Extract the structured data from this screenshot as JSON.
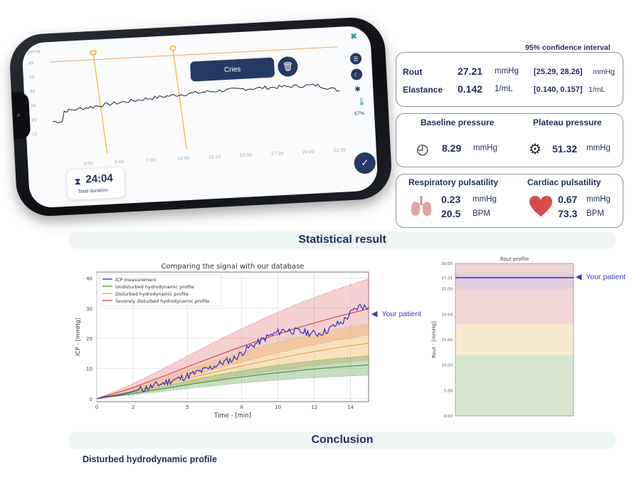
{
  "phone": {
    "trace_unit": "mmHg",
    "y_ticks": [
      "60",
      "50",
      "40",
      "30",
      "20",
      "10"
    ],
    "x_ticks": [
      "3:00",
      "5:00",
      "7:00",
      "10:00",
      "11:20",
      "15:00",
      "17:20",
      "20:00",
      "22:20"
    ],
    "cries_label": "Cries",
    "trash_icon": "trash-icon",
    "duration_value": "24:04",
    "duration_label": "Total duration",
    "battery": "67%",
    "trace_color": "#1c2230",
    "marker_color": "#f0b429",
    "threshold_color": "#f0a060"
  },
  "metrics": {
    "ci_header": "95% confidence interval",
    "rout": {
      "label": "Rout",
      "value": "27.21",
      "unit": "mmHg",
      "ci": "[25.29, 28.26]",
      "ci_unit": "mmHg"
    },
    "elastance": {
      "label": "Elastance",
      "value": "0.142",
      "unit": "1/mL",
      "ci": "[0.140, 0.157]",
      "ci_unit": "1/mL"
    },
    "baseline": {
      "label": "Baseline pressure",
      "value": "8.29",
      "unit": "mmHg"
    },
    "plateau": {
      "label": "Plateau pressure",
      "value": "51.32",
      "unit": "mmHg"
    },
    "respiratory": {
      "label": "Respiratory pulsatility",
      "value1": "0.23",
      "unit1": "mmHg",
      "value2": "20.5",
      "unit2": "BPM"
    },
    "cardiac": {
      "label": "Cardiac pulsatility",
      "value1": "0.67",
      "unit1": "mmHg",
      "value2": "73.3",
      "unit2": "BPM"
    }
  },
  "statistical_title": "Statistical result",
  "conclusion_title": "Conclusion",
  "conclusion_text": "Disturbed hydrodynamic profile",
  "your_patient_label": "Your patient",
  "chart_data": [
    {
      "type": "line",
      "title": "Comparing the signal with our database",
      "xlabel": "Time - [min]",
      "ylabel": "ICP - [mmHg]",
      "x_ticks": [
        "0",
        "2",
        "5",
        "8",
        "10",
        "12",
        "14"
      ],
      "y_ticks": [
        "0",
        "10",
        "20",
        "30",
        "40"
      ],
      "xlim": [
        0,
        16
      ],
      "ylim": [
        -1,
        42
      ],
      "legend": [
        "ICP measurement",
        "Undisturbed hydrodynamic profile",
        "Disturbed hydrodynamic profile",
        "Severely disturbed hydrodynamic profile"
      ],
      "legend_position": "top-left",
      "grid": true,
      "series": [
        {
          "name": "ICP measurement",
          "color": "#2c2cc8",
          "x": [
            0,
            0.5,
            1,
            1.5,
            2,
            2.5,
            3,
            3.5,
            4,
            4.5,
            5,
            5.5,
            6,
            6.5,
            7,
            7.5,
            8,
            8.5,
            9,
            9.5,
            10,
            10.5,
            11,
            11.5,
            12,
            12.5,
            13,
            13.5,
            14,
            14.5,
            15,
            15.5,
            16
          ],
          "y": [
            0,
            0.6,
            1.0,
            1.5,
            2.2,
            3.0,
            3.6,
            4.5,
            5.3,
            6.2,
            6.9,
            7.9,
            8.9,
            9.8,
            11.0,
            12.2,
            13.0,
            15.0,
            17.2,
            18.6,
            20.4,
            21.6,
            22.8,
            22.5,
            22.2,
            21.8,
            21.5,
            22.4,
            24.2,
            25.6,
            28.6,
            30.8,
            30.2
          ]
        },
        {
          "name": "Undisturbed hydrodynamic profile",
          "color": "#3f8f3f",
          "x": [
            0,
            2,
            4,
            6,
            8,
            10,
            12,
            14,
            16
          ],
          "y": [
            0,
            1.6,
            3.4,
            5.2,
            6.8,
            8.2,
            9.4,
            10.4,
            11.2
          ],
          "band_low": [
            0,
            1.2,
            2.5,
            3.8,
            4.9,
            5.9,
            6.7,
            7.3,
            7.8
          ],
          "band_high": [
            0,
            2.0,
            4.3,
            6.7,
            8.8,
            10.6,
            12.1,
            13.3,
            14.2
          ]
        },
        {
          "name": "Disturbed hydrodynamic profile",
          "color": "#e0a23c",
          "x": [
            0,
            2,
            4,
            6,
            8,
            10,
            12,
            14,
            16
          ],
          "y": [
            0,
            2.2,
            4.8,
            7.6,
            10.2,
            12.6,
            14.8,
            16.8,
            18.4
          ],
          "band_low": [
            0,
            1.5,
            3.3,
            5.2,
            7.1,
            8.9,
            10.4,
            11.7,
            12.8
          ],
          "band_high": [
            0,
            3.2,
            7.0,
            11.0,
            14.6,
            17.8,
            20.6,
            23.0,
            25.0
          ]
        },
        {
          "name": "Severely disturbed hydrodynamic profile",
          "color": "#d63a3a",
          "x": [
            0,
            2,
            4,
            6,
            8,
            10,
            12,
            14,
            16
          ],
          "y": [
            0,
            3.4,
            7.6,
            12.0,
            16.2,
            20.2,
            23.8,
            27.0,
            29.8
          ],
          "band_low": [
            0,
            2.3,
            5.2,
            8.3,
            11.4,
            14.3,
            16.9,
            19.2,
            21.2
          ],
          "band_high": [
            0,
            4.6,
            10.2,
            16.1,
            21.8,
            27.1,
            31.9,
            36.0,
            39.8
          ]
        }
      ]
    },
    {
      "type": "bar",
      "title": "Rout profile",
      "ylabel": "Rout - [mmHg]",
      "y_ticks": [
        "0.00",
        "5.00",
        "10.00",
        "15.00",
        "20.00",
        "25.00",
        "30.00"
      ],
      "ylim": [
        0,
        30
      ],
      "bands": [
        {
          "from": 0,
          "to": 12,
          "color": "#d6e6d0"
        },
        {
          "from": 12,
          "to": 18,
          "color": "#f6ead0"
        },
        {
          "from": 18,
          "to": 30,
          "color": "#f2d6d6"
        },
        {
          "from": 25,
          "to": 28,
          "color": "#e2cde0"
        }
      ],
      "patient_value": 27.21,
      "patient_label_tick": "27.21",
      "patient_color": "#2c2cc8"
    }
  ]
}
